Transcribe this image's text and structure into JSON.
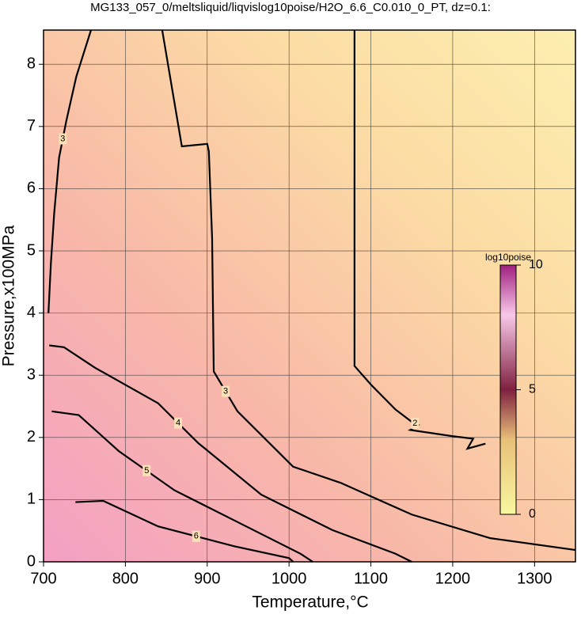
{
  "chart_data": {
    "type": "contour",
    "title": "MG133_057_0/meltsliquid/liqvislog10poise/H2O_6.6_C0.010_0_PT, dz=0.1:",
    "xlabel": "Temperature,°C",
    "ylabel": "Pressure,x100MPa",
    "xlim": [
      700,
      1350
    ],
    "ylim": [
      0,
      8.55
    ],
    "xticks": [
      700,
      800,
      900,
      1000,
      1100,
      1200,
      1300
    ],
    "yticks": [
      0,
      1,
      2,
      3,
      4,
      5,
      6,
      7,
      8
    ],
    "grid": true,
    "contours": [
      {
        "level": 2,
        "x": [
          1080,
          1080,
          1100,
          1130,
          1150,
          1158,
          1148,
          1200,
          1225,
          1218,
          1240
        ],
        "y": [
          8.55,
          3.15,
          2.85,
          2.45,
          2.25,
          2.2,
          2.12,
          2.02,
          1.98,
          1.82,
          1.9
        ]
      },
      {
        "level": 3,
        "x": [
          845,
          869,
          900,
          902,
          906,
          908,
          937,
          1005,
          1063,
          1150,
          1246,
          1350
        ],
        "y": [
          8.55,
          6.68,
          6.72,
          6.6,
          5.2,
          3.06,
          2.42,
          1.53,
          1.27,
          0.76,
          0.38,
          0.19
        ]
      },
      {
        "level": 3,
        "x": [
          758,
          740,
          728,
          719,
          713,
          709,
          706
        ],
        "y": [
          8.55,
          7.8,
          7.1,
          6.5,
          5.6,
          4.8,
          4.0
        ]
      },
      {
        "level": 4,
        "x": [
          707,
          725,
          763,
          840,
          889,
          966,
          1053,
          1130,
          1150
        ],
        "y": [
          3.48,
          3.45,
          3.12,
          2.55,
          1.91,
          1.08,
          0.51,
          0.13,
          0
        ]
      },
      {
        "level": 5,
        "x": [
          710,
          743,
          792,
          860,
          937,
          1014,
          1029
        ],
        "y": [
          2.42,
          2.36,
          1.78,
          1.15,
          0.64,
          0.13,
          0
        ]
      },
      {
        "level": 6,
        "x": [
          739,
          773,
          840,
          933,
          1000,
          1005
        ],
        "y": [
          0.96,
          0.98,
          0.57,
          0.25,
          0.06,
          0
        ]
      }
    ],
    "colorbar": {
      "title": "log10poise",
      "lim": [
        0,
        10
      ],
      "ticks": [
        0,
        5,
        10
      ]
    }
  }
}
